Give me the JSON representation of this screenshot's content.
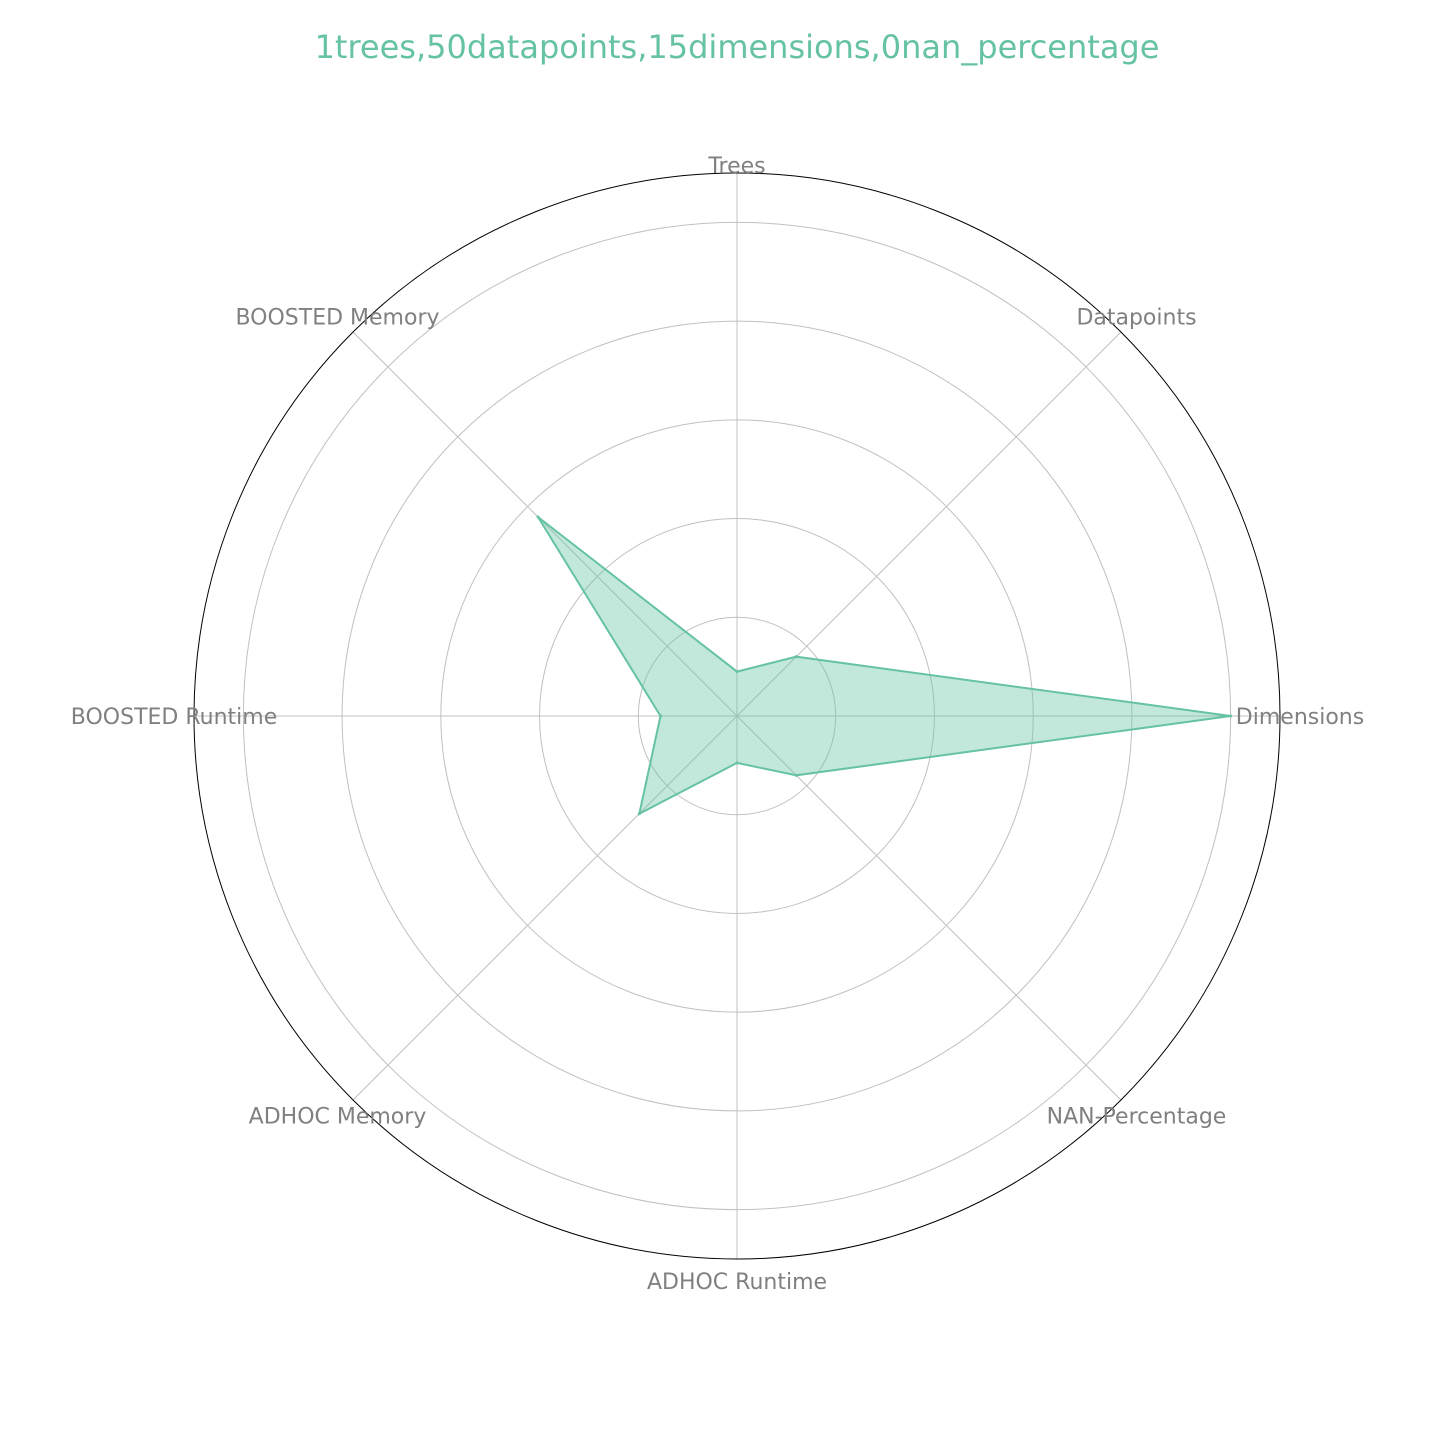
{
  "chart_data": {
    "type": "radar",
    "title": "1trees,50datapoints,15dimensions,0nan_percentage",
    "categories": [
      "Trees",
      "Datapoints",
      "Dimensions",
      "NAN-Percentage",
      "ADHOC Runtime",
      "ADHOC Memory",
      "BOOSTED Runtime",
      "BOOSTED Memory"
    ],
    "series": [
      {
        "values": [
          0.09,
          0.17,
          1.0,
          0.17,
          0.095,
          0.28,
          0.155,
          0.57
        ]
      }
    ],
    "rlim": [
      0,
      1.1
    ],
    "grid": true,
    "colors": {
      "series": "#66c2a5",
      "title": "#66c2a5",
      "grid": "#c0c0c0",
      "frame": "#000000",
      "label": "#808080"
    }
  }
}
